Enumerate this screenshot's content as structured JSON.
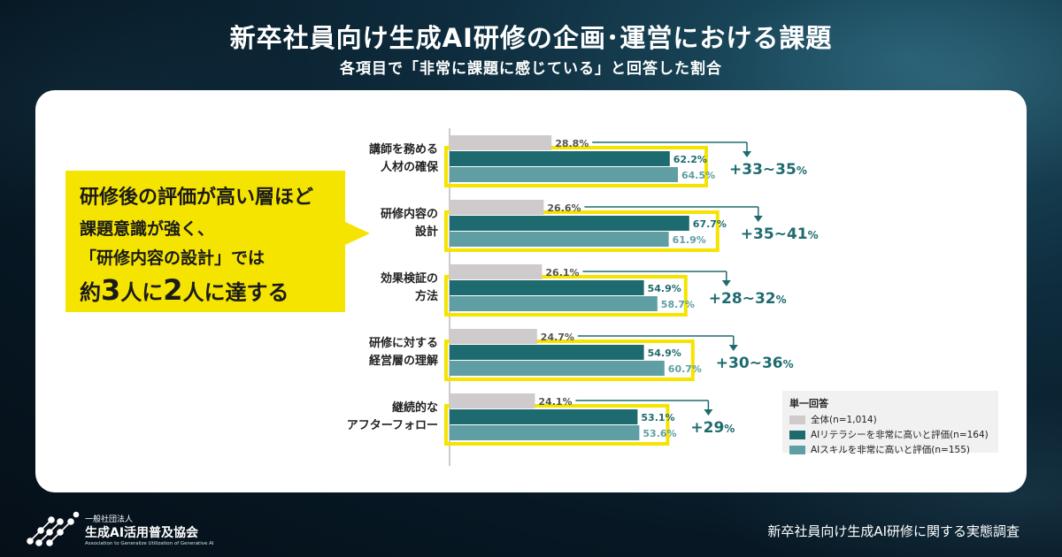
{
  "title": "新卒社員向け生成AI研修の企画･運営における課題",
  "subtitle": "各項目で「非常に課題に感じている」と回答した割合",
  "callout": {
    "line1": "研修後の評価が高い層ほど",
    "line2": "課題意識が強く、",
    "line3": "「研修内容の設計」では",
    "line4_a": "約",
    "line4_b": "3",
    "line4_c": "人に",
    "line4_d": "2",
    "line4_e": "人に達する"
  },
  "chart_data": {
    "type": "bar",
    "orientation": "horizontal",
    "unit": "%",
    "xlim": [
      0,
      100
    ],
    "categories": [
      [
        "講師を務める",
        "人材の確保"
      ],
      [
        "研修内容の",
        "設計"
      ],
      [
        "効果検証の",
        "方法"
      ],
      [
        "研修に対する",
        "経営層の理解"
      ],
      [
        "継続的な",
        "アフターフォロー"
      ]
    ],
    "series": [
      {
        "name": "全体(n=1,014)",
        "color": "#cfcacb",
        "values": [
          28.8,
          26.6,
          26.1,
          24.7,
          24.1
        ]
      },
      {
        "name": "AIリテラシーを非常に高いと評価(n=164)",
        "color": "#1e6b6f",
        "values": [
          62.2,
          67.7,
          54.9,
          54.9,
          53.1
        ]
      },
      {
        "name": "AIスキルを非常に高いと評価(n=155)",
        "color": "#5f9ea3",
        "values": [
          64.5,
          61.9,
          58.7,
          60.7,
          53.6
        ]
      }
    ],
    "differences": [
      "+33~35",
      "+35~41",
      "+28~32",
      "+30~36",
      "+29"
    ],
    "legend_title": "単一回答",
    "legend_position": "bottom-right",
    "highlight_color": "#f5e400",
    "arrow_color": "#1e6b6f"
  },
  "footer": {
    "survey_name": "新卒社員向け生成AI研修に関する実態調査",
    "org_small": "一般社団法人",
    "org_name": "生成AI活用普及協会",
    "org_english": "Association to Generalize Utilization of Generative AI"
  }
}
